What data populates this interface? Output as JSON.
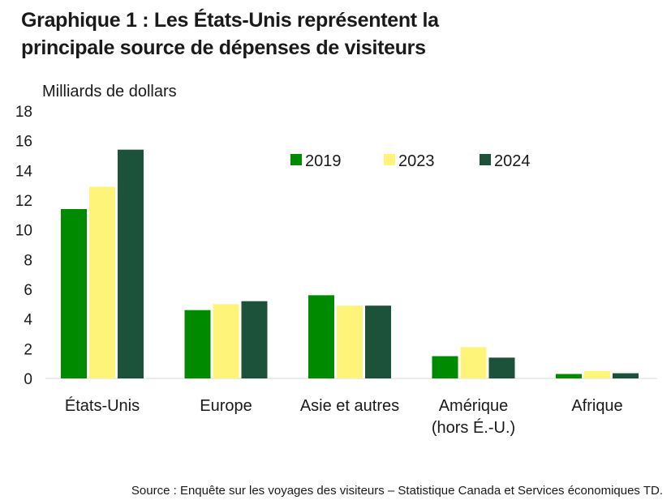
{
  "chart_data": {
    "type": "bar",
    "title_lines": [
      "Graphique 1 : Les États-Unis représentent la",
      "principale source de dépenses de visiteurs"
    ],
    "ylabel": "Milliards de dollars",
    "ylim": [
      0,
      18
    ],
    "yticks": [
      "0",
      "2",
      "4",
      "6",
      "8",
      "10",
      "12",
      "14",
      "16",
      "18"
    ],
    "categories": [
      [
        "États-Unis"
      ],
      [
        "Europe"
      ],
      [
        "Asie et autres"
      ],
      [
        "Amérique",
        "(hors É.-U.)"
      ],
      [
        "Afrique"
      ]
    ],
    "series": [
      {
        "name": "2019",
        "color": "#008a00",
        "values": [
          11.4,
          4.6,
          5.6,
          1.5,
          0.3
        ]
      },
      {
        "name": "2023",
        "color": "#fff47a",
        "values": [
          12.9,
          5.0,
          4.9,
          2.1,
          0.5
        ]
      },
      {
        "name": "2024",
        "color": "#1d523a",
        "values": [
          15.4,
          5.2,
          4.9,
          1.4,
          0.35
        ]
      }
    ],
    "legend_position": "top-right",
    "grid": false
  },
  "source": "Source : Enquête sur les voyages des visiteurs – Statistique Canada et Services économiques TD."
}
